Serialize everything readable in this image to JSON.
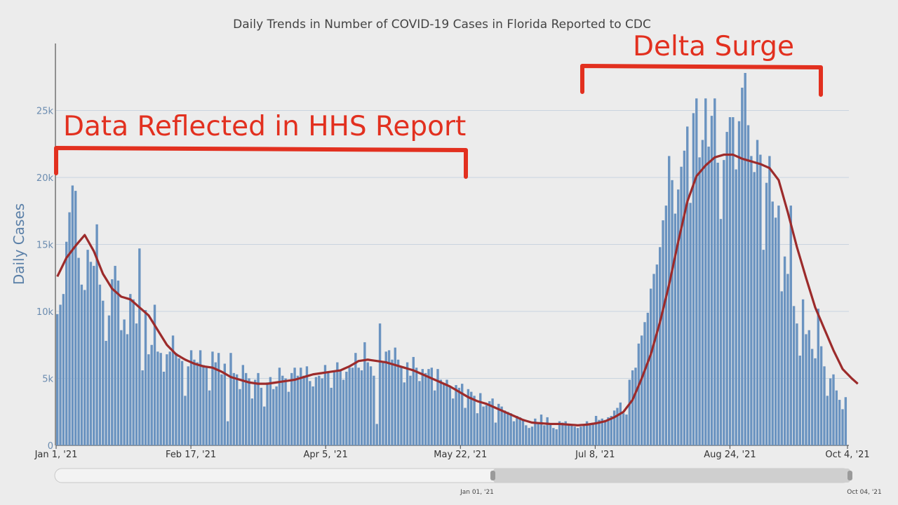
{
  "chart_data": {
    "type": "bar",
    "title": "Daily Trends in Number of COVID-19 Cases in Florida Reported to CDC",
    "ylabel": "Daily Cases",
    "ylim": [
      0,
      30000
    ],
    "y_ticks": [
      {
        "value": 0,
        "label": "0"
      },
      {
        "value": 5000,
        "label": "5k"
      },
      {
        "value": 10000,
        "label": "10k"
      },
      {
        "value": 15000,
        "label": "15k"
      },
      {
        "value": 20000,
        "label": "20k"
      },
      {
        "value": 25000,
        "label": "25k"
      }
    ],
    "x_ticks": [
      {
        "day": 0,
        "label": "Jan 1, '21"
      },
      {
        "day": 47,
        "label": "Feb 17, '21"
      },
      {
        "day": 94,
        "label": "Apr 5, '21"
      },
      {
        "day": 141,
        "label": "May 22, '21"
      },
      {
        "day": 188,
        "label": "Jul 8, '21"
      },
      {
        "day": 235,
        "label": "Aug 24, '21"
      },
      {
        "day": 276,
        "label": "Oct 4, '21"
      }
    ],
    "grid": true,
    "bar_color": "#6a93c0",
    "line_color": "#9c2b2b",
    "annotation_color": "#e2301f",
    "series_bar_keyframes": [
      [
        0,
        9800
      ],
      [
        1,
        10500
      ],
      [
        2,
        11300
      ],
      [
        3,
        15200
      ],
      [
        4,
        17400
      ],
      [
        5,
        19400
      ],
      [
        6,
        19000
      ],
      [
        7,
        14000
      ],
      [
        8,
        12000
      ],
      [
        9,
        11600
      ],
      [
        10,
        14600
      ],
      [
        11,
        13700
      ],
      [
        12,
        13400
      ],
      [
        13,
        16500
      ],
      [
        14,
        12000
      ],
      [
        15,
        10800
      ],
      [
        16,
        7800
      ],
      [
        17,
        9700
      ],
      [
        18,
        12400
      ],
      [
        19,
        13400
      ],
      [
        20,
        12300
      ],
      [
        21,
        8600
      ],
      [
        22,
        9400
      ],
      [
        23,
        8300
      ],
      [
        24,
        11300
      ],
      [
        25,
        10900
      ],
      [
        26,
        9100
      ],
      [
        27,
        14700
      ],
      [
        28,
        5600
      ],
      [
        29,
        10100
      ],
      [
        30,
        6800
      ],
      [
        31,
        7500
      ],
      [
        32,
        10500
      ],
      [
        33,
        7000
      ],
      [
        34,
        6900
      ],
      [
        35,
        5500
      ],
      [
        36,
        6800
      ],
      [
        37,
        7000
      ],
      [
        38,
        8200
      ],
      [
        39,
        6900
      ],
      [
        40,
        6500
      ],
      [
        41,
        6300
      ],
      [
        42,
        3700
      ],
      [
        43,
        5900
      ],
      [
        44,
        7100
      ],
      [
        45,
        6400
      ],
      [
        46,
        6200
      ],
      [
        47,
        7100
      ],
      [
        48,
        6000
      ],
      [
        49,
        5800
      ],
      [
        50,
        4100
      ],
      [
        51,
        7000
      ],
      [
        52,
        6200
      ],
      [
        53,
        6900
      ],
      [
        54,
        5300
      ],
      [
        55,
        6100
      ],
      [
        56,
        1800
      ],
      [
        57,
        6900
      ],
      [
        58,
        5400
      ],
      [
        59,
        5300
      ],
      [
        60,
        4200
      ],
      [
        61,
        6000
      ],
      [
        62,
        5400
      ],
      [
        63,
        5000
      ],
      [
        64,
        3500
      ],
      [
        65,
        4900
      ],
      [
        66,
        5400
      ],
      [
        67,
        4300
      ],
      [
        68,
        2900
      ],
      [
        69,
        4700
      ],
      [
        70,
        5100
      ],
      [
        71,
        4200
      ],
      [
        72,
        4400
      ],
      [
        73,
        5800
      ],
      [
        74,
        5200
      ],
      [
        75,
        5000
      ],
      [
        76,
        4000
      ],
      [
        77,
        5400
      ],
      [
        78,
        5800
      ],
      [
        79,
        5200
      ],
      [
        80,
        5800
      ],
      [
        81,
        5200
      ],
      [
        82,
        5900
      ],
      [
        83,
        4800
      ],
      [
        84,
        4400
      ],
      [
        85,
        5100
      ],
      [
        86,
        5200
      ],
      [
        87,
        5000
      ],
      [
        88,
        6000
      ],
      [
        89,
        5400
      ],
      [
        90,
        4300
      ],
      [
        91,
        5600
      ],
      [
        92,
        6200
      ],
      [
        93,
        5600
      ],
      [
        94,
        4900
      ],
      [
        95,
        5500
      ],
      [
        96,
        5800
      ],
      [
        97,
        5800
      ],
      [
        98,
        6900
      ],
      [
        99,
        5800
      ],
      [
        100,
        5600
      ],
      [
        101,
        7700
      ],
      [
        102,
        6200
      ],
      [
        103,
        5900
      ],
      [
        104,
        5200
      ],
      [
        105,
        1600
      ],
      [
        106,
        9100
      ],
      [
        107,
        6300
      ],
      [
        108,
        7000
      ],
      [
        109,
        7100
      ],
      [
        110,
        6400
      ],
      [
        111,
        7300
      ],
      [
        112,
        6400
      ],
      [
        113,
        5900
      ],
      [
        114,
        4700
      ],
      [
        115,
        6200
      ],
      [
        116,
        5200
      ],
      [
        117,
        6600
      ],
      [
        118,
        5800
      ],
      [
        119,
        4800
      ],
      [
        120,
        5700
      ],
      [
        121,
        5400
      ],
      [
        122,
        5700
      ],
      [
        123,
        5800
      ],
      [
        124,
        4100
      ],
      [
        125,
        5700
      ],
      [
        126,
        4900
      ],
      [
        127,
        4600
      ],
      [
        128,
        4900
      ],
      [
        129,
        4400
      ],
      [
        130,
        3500
      ],
      [
        131,
        4500
      ],
      [
        132,
        4300
      ],
      [
        133,
        4600
      ],
      [
        134,
        2800
      ],
      [
        135,
        4200
      ],
      [
        136,
        4000
      ],
      [
        137,
        3700
      ],
      [
        138,
        2400
      ],
      [
        139,
        3900
      ],
      [
        140,
        2900
      ],
      [
        141,
        3000
      ],
      [
        142,
        3300
      ],
      [
        143,
        3500
      ],
      [
        144,
        1700
      ],
      [
        145,
        3100
      ],
      [
        146,
        2900
      ],
      [
        147,
        2600
      ],
      [
        148,
        2500
      ],
      [
        149,
        2400
      ],
      [
        150,
        1800
      ],
      [
        151,
        2200
      ],
      [
        152,
        2100
      ],
      [
        153,
        1900
      ],
      [
        154,
        1500
      ],
      [
        155,
        1300
      ],
      [
        156,
        1400
      ],
      [
        157,
        2000
      ],
      [
        158,
        1700
      ],
      [
        159,
        2300
      ],
      [
        160,
        1500
      ],
      [
        161,
        2100
      ],
      [
        162,
        1600
      ],
      [
        163,
        1300
      ],
      [
        164,
        1200
      ],
      [
        165,
        1800
      ],
      [
        166,
        1700
      ],
      [
        167,
        1800
      ],
      [
        168,
        1500
      ],
      [
        169,
        1500
      ],
      [
        170,
        1400
      ],
      [
        171,
        1300
      ],
      [
        172,
        1400
      ],
      [
        173,
        1500
      ],
      [
        174,
        1800
      ],
      [
        175,
        1600
      ],
      [
        176,
        1700
      ],
      [
        177,
        2200
      ],
      [
        178,
        1900
      ],
      [
        179,
        2000
      ],
      [
        180,
        1900
      ],
      [
        181,
        2100
      ],
      [
        182,
        2200
      ],
      [
        183,
        2600
      ],
      [
        184,
        2800
      ],
      [
        185,
        3200
      ],
      [
        186,
        2400
      ],
      [
        187,
        2300
      ],
      [
        188,
        4900
      ],
      [
        189,
        5600
      ],
      [
        190,
        5800
      ],
      [
        191,
        7600
      ],
      [
        192,
        8200
      ],
      [
        193,
        9200
      ],
      [
        194,
        9900
      ],
      [
        195,
        11700
      ],
      [
        196,
        12800
      ],
      [
        197,
        13500
      ],
      [
        198,
        14800
      ],
      [
        199,
        16800
      ],
      [
        200,
        17900
      ],
      [
        201,
        21600
      ],
      [
        202,
        19800
      ],
      [
        203,
        17300
      ],
      [
        204,
        19100
      ],
      [
        205,
        20800
      ],
      [
        206,
        22000
      ],
      [
        207,
        23800
      ],
      [
        208,
        18100
      ],
      [
        209,
        24800
      ],
      [
        210,
        25900
      ],
      [
        211,
        21500
      ],
      [
        212,
        22800
      ],
      [
        213,
        25900
      ],
      [
        214,
        22300
      ],
      [
        215,
        24600
      ],
      [
        216,
        25900
      ],
      [
        217,
        21100
      ],
      [
        218,
        16900
      ],
      [
        219,
        21300
      ],
      [
        220,
        23400
      ],
      [
        221,
        24500
      ],
      [
        222,
        24500
      ],
      [
        223,
        20600
      ],
      [
        224,
        24200
      ],
      [
        225,
        26700
      ],
      [
        226,
        27800
      ],
      [
        227,
        23900
      ],
      [
        228,
        21600
      ],
      [
        229,
        20400
      ],
      [
        230,
        22800
      ],
      [
        231,
        21700
      ],
      [
        232,
        14600
      ],
      [
        233,
        19600
      ],
      [
        234,
        21600
      ],
      [
        235,
        18200
      ],
      [
        236,
        17000
      ],
      [
        237,
        17900
      ],
      [
        238,
        11500
      ],
      [
        239,
        14100
      ],
      [
        240,
        12800
      ],
      [
        241,
        17900
      ],
      [
        242,
        10400
      ],
      [
        243,
        9100
      ],
      [
        244,
        6700
      ],
      [
        245,
        10900
      ],
      [
        246,
        8300
      ],
      [
        247,
        8600
      ],
      [
        248,
        7200
      ],
      [
        249,
        6500
      ],
      [
        250,
        10200
      ],
      [
        251,
        7400
      ],
      [
        252,
        5900
      ],
      [
        253,
        3700
      ],
      [
        254,
        5000
      ],
      [
        255,
        5300
      ],
      [
        256,
        4100
      ],
      [
        257,
        3400
      ],
      [
        258,
        2700
      ],
      [
        259,
        3600
      ]
    ],
    "series_avg_keyframes": [
      [
        0,
        12600
      ],
      [
        3,
        14000
      ],
      [
        6,
        14900
      ],
      [
        9,
        15700
      ],
      [
        12,
        14500
      ],
      [
        15,
        12800
      ],
      [
        18,
        11700
      ],
      [
        21,
        11100
      ],
      [
        24,
        10900
      ],
      [
        27,
        10300
      ],
      [
        30,
        9700
      ],
      [
        33,
        8600
      ],
      [
        36,
        7500
      ],
      [
        39,
        6800
      ],
      [
        42,
        6400
      ],
      [
        45,
        6100
      ],
      [
        48,
        5900
      ],
      [
        51,
        5800
      ],
      [
        54,
        5500
      ],
      [
        57,
        5100
      ],
      [
        60,
        4900
      ],
      [
        63,
        4700
      ],
      [
        66,
        4600
      ],
      [
        69,
        4600
      ],
      [
        72,
        4700
      ],
      [
        75,
        4800
      ],
      [
        78,
        4900
      ],
      [
        81,
        5100
      ],
      [
        84,
        5300
      ],
      [
        87,
        5400
      ],
      [
        90,
        5500
      ],
      [
        93,
        5600
      ],
      [
        96,
        5900
      ],
      [
        99,
        6300
      ],
      [
        102,
        6400
      ],
      [
        105,
        6300
      ],
      [
        108,
        6200
      ],
      [
        111,
        6000
      ],
      [
        114,
        5800
      ],
      [
        117,
        5600
      ],
      [
        120,
        5300
      ],
      [
        123,
        5000
      ],
      [
        126,
        4700
      ],
      [
        129,
        4400
      ],
      [
        132,
        4000
      ],
      [
        135,
        3600
      ],
      [
        138,
        3300
      ],
      [
        141,
        3100
      ],
      [
        144,
        2800
      ],
      [
        147,
        2500
      ],
      [
        150,
        2200
      ],
      [
        153,
        1900
      ],
      [
        156,
        1700
      ],
      [
        159,
        1650
      ],
      [
        162,
        1600
      ],
      [
        165,
        1600
      ],
      [
        168,
        1550
      ],
      [
        171,
        1500
      ],
      [
        174,
        1550
      ],
      [
        177,
        1650
      ],
      [
        180,
        1800
      ],
      [
        183,
        2100
      ],
      [
        186,
        2500
      ],
      [
        189,
        3400
      ],
      [
        192,
        5000
      ],
      [
        195,
        6800
      ],
      [
        198,
        9200
      ],
      [
        201,
        12000
      ],
      [
        204,
        15200
      ],
      [
        207,
        18200
      ],
      [
        210,
        20100
      ],
      [
        213,
        20900
      ],
      [
        216,
        21500
      ],
      [
        219,
        21700
      ],
      [
        222,
        21700
      ],
      [
        225,
        21400
      ],
      [
        228,
        21200
      ],
      [
        231,
        21000
      ],
      [
        234,
        20700
      ],
      [
        237,
        19800
      ],
      [
        240,
        17400
      ],
      [
        243,
        14800
      ],
      [
        246,
        12500
      ],
      [
        249,
        10300
      ],
      [
        252,
        8700
      ],
      [
        255,
        7100
      ],
      [
        258,
        5700
      ],
      [
        261,
        5000
      ],
      [
        263,
        4600
      ]
    ],
    "annotations": [
      {
        "text": "Data Reflected in HHS Report"
      },
      {
        "text": "Delta Surge"
      }
    ],
    "range_slider": {
      "start_label": "Jan 01, '21",
      "end_label": "Oct 04, '21"
    }
  }
}
